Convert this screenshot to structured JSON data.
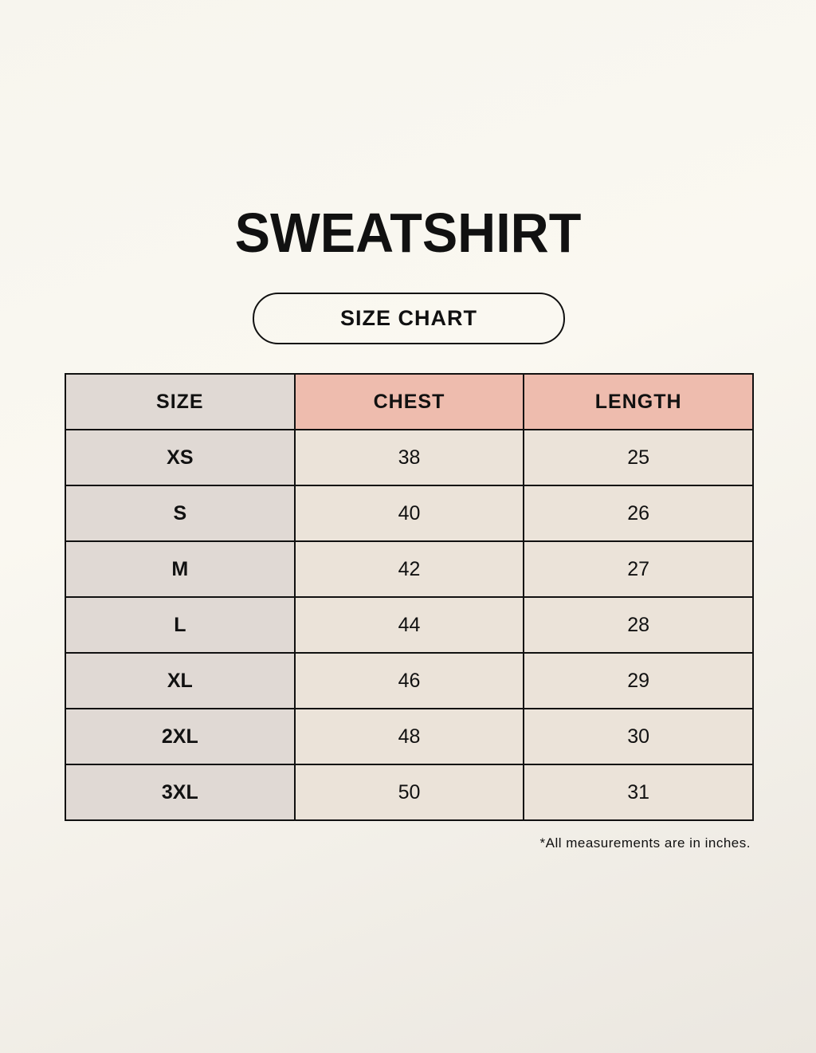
{
  "title": "SWEATSHIRT",
  "subtitle": "SIZE CHART",
  "table": {
    "headers": [
      "SIZE",
      "CHEST",
      "LENGTH"
    ],
    "rows": [
      [
        "XS",
        "38",
        "25"
      ],
      [
        "S",
        "40",
        "26"
      ],
      [
        "M",
        "42",
        "27"
      ],
      [
        "L",
        "44",
        "28"
      ],
      [
        "XL",
        "46",
        "29"
      ],
      [
        "2XL",
        "48",
        "30"
      ],
      [
        "3XL",
        "50",
        "31"
      ]
    ]
  },
  "footnote": "*All measurements are in inches.",
  "colors": {
    "size_column": "#e0d9d4",
    "measurement_header": "#eebcae",
    "measurement_cells": "#ebe3d9"
  }
}
